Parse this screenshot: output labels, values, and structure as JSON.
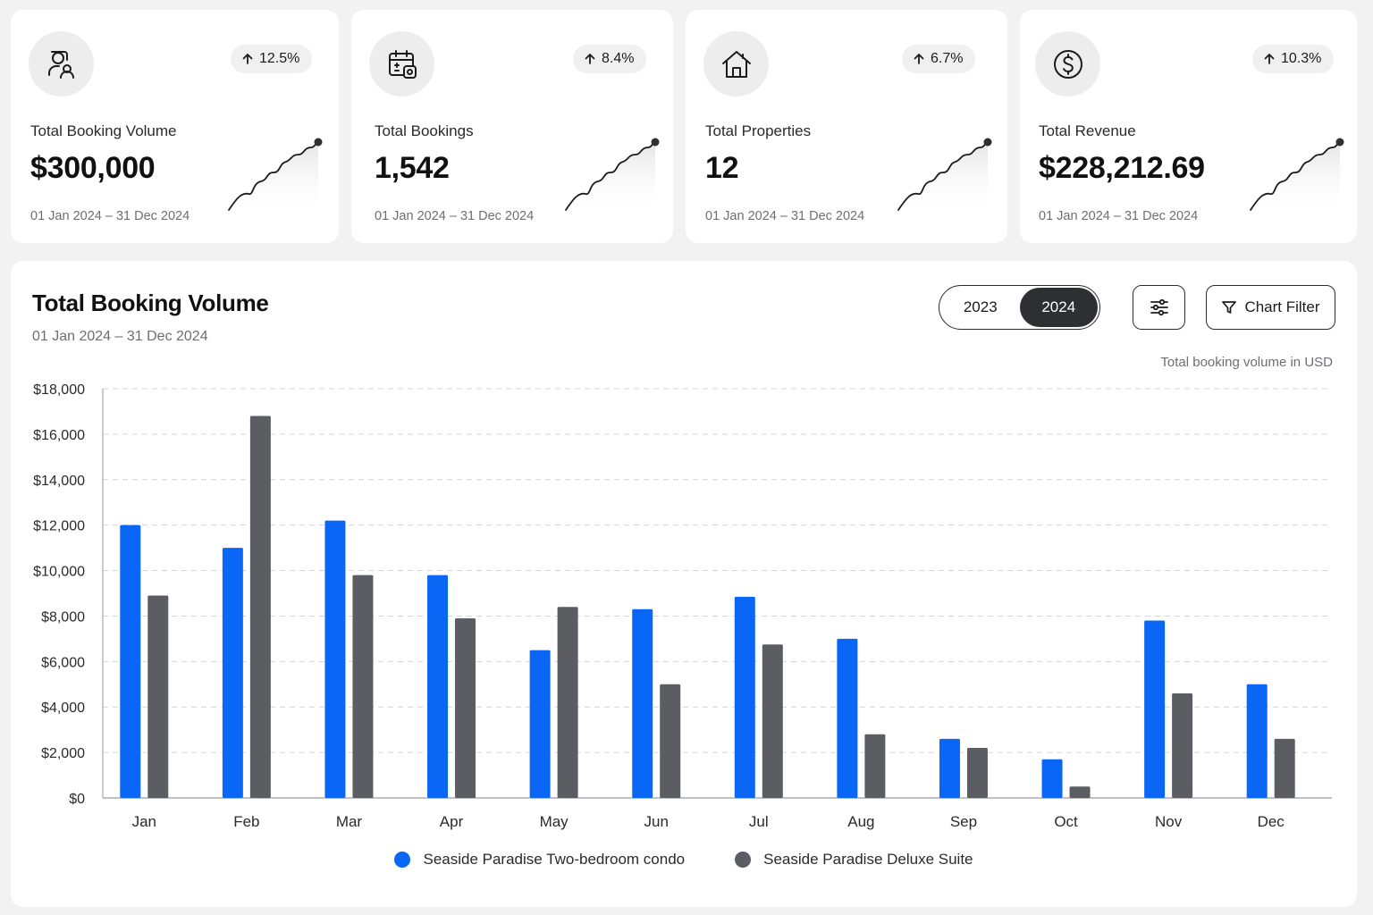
{
  "colors": {
    "series1": "#0a66f5",
    "series2": "#5b5d62",
    "grid": "#d6d6d9",
    "axis": "#9a9aa0"
  },
  "stat_cards": [
    {
      "icon": "users-icon",
      "change": "12.5%",
      "label": "Total Booking Volume",
      "value": "$300,000",
      "range": "01 Jan 2024 – 31 Dec 2024"
    },
    {
      "icon": "calendar-icon",
      "change": "8.4%",
      "label": "Total Bookings",
      "value": "1,542",
      "range": "01 Jan 2024 – 31 Dec 2024"
    },
    {
      "icon": "home-icon",
      "change": "6.7%",
      "label": "Total Properties",
      "value": "12",
      "range": "01 Jan 2024 – 31 Dec 2024"
    },
    {
      "icon": "dollar-icon",
      "change": "10.3%",
      "label": "Total Revenue",
      "value": "$228,212.69",
      "range": "01 Jan 2024 – 31 Dec 2024"
    }
  ],
  "panel": {
    "title": "Total Booking Volume",
    "range": "01 Jan 2024 – 31 Dec 2024",
    "years": [
      "2023",
      "2024"
    ],
    "selected_year": "2024",
    "filter_label": "Chart Filter",
    "unit_note": "Total booking volume in USD"
  },
  "chart_data": {
    "type": "bar",
    "categories": [
      "Jan",
      "Feb",
      "Mar",
      "Apr",
      "May",
      "Jun",
      "Jul",
      "Aug",
      "Sep",
      "Oct",
      "Nov",
      "Dec"
    ],
    "series": [
      {
        "name": "Seaside Paradise Two-bedroom condo",
        "values": [
          12000,
          11000,
          12200,
          9800,
          6500,
          8300,
          8850,
          7000,
          2600,
          1700,
          7800,
          5000
        ]
      },
      {
        "name": "Seaside Paradise Deluxe Suite",
        "values": [
          8900,
          16800,
          9800,
          7900,
          8400,
          5000,
          6750,
          2800,
          2200,
          500,
          4600,
          2600
        ]
      }
    ],
    "ylim": [
      0,
      18000
    ],
    "yticks": [
      0,
      2000,
      4000,
      6000,
      8000,
      10000,
      12000,
      14000,
      16000,
      18000
    ],
    "ytick_labels": [
      "$0",
      "$2,000",
      "$4,000",
      "$6,000",
      "$8,000",
      "$10,000",
      "$12,000",
      "$14,000",
      "$16,000",
      "$18,000"
    ],
    "grid": true,
    "legend_position": "bottom-center"
  }
}
